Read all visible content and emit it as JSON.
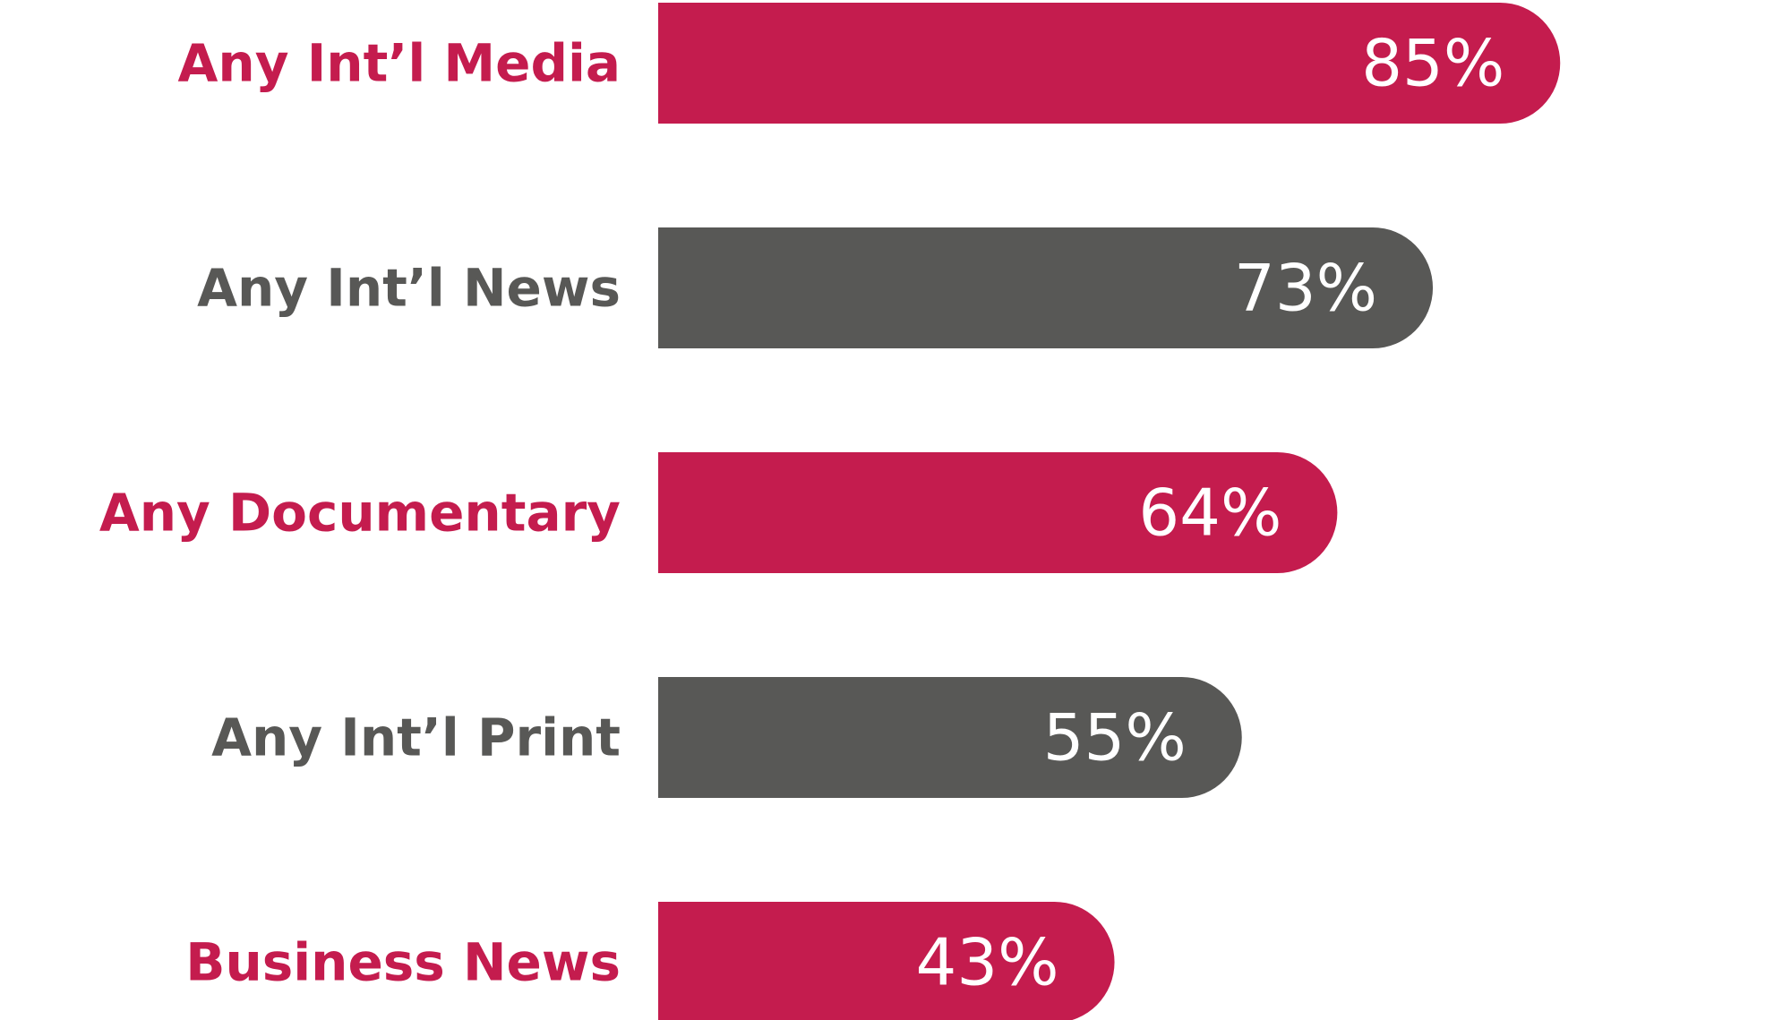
{
  "chart_data": {
    "type": "bar",
    "orientation": "horizontal",
    "categories": [
      "Any Int’l Media",
      "Any Int’l News",
      "Any Documentary",
      "Any Int’l Print",
      "Business News"
    ],
    "values": [
      85,
      73,
      64,
      55,
      43
    ],
    "value_labels": [
      "85%",
      "73%",
      "64%",
      "55%",
      "43%"
    ],
    "bar_colors": [
      "#c41c4e",
      "#585856",
      "#c41c4e",
      "#585856",
      "#c41c4e"
    ],
    "label_colors": [
      "#c41c4e",
      "#585856",
      "#c41c4e",
      "#585856",
      "#c41c4e"
    ],
    "value_label_color": "#ffffff",
    "xlim": [
      0,
      100
    ],
    "grid": false,
    "legend": "none"
  }
}
